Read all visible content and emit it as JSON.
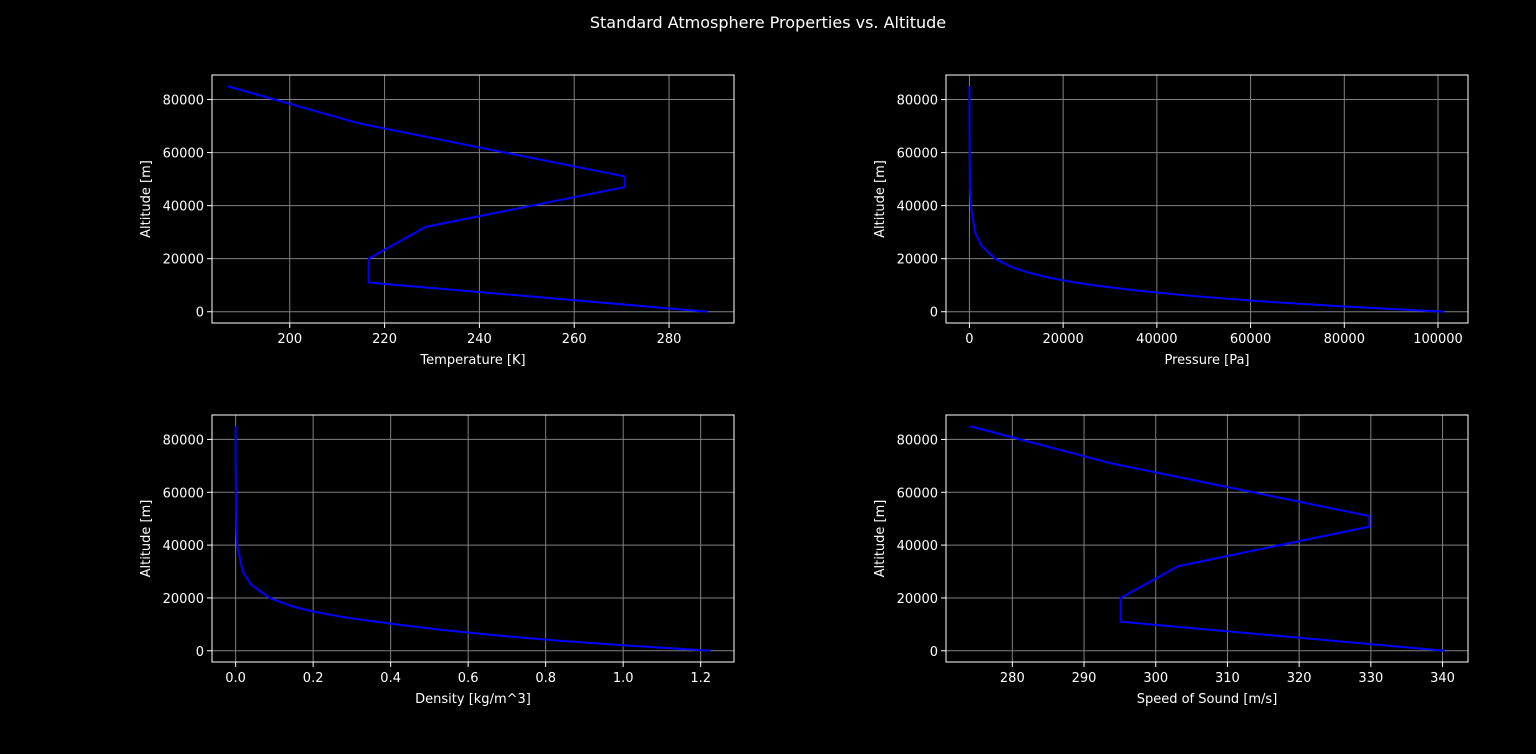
{
  "figure": {
    "title": "Standard Atmosphere Properties vs. Altitude",
    "background": "#000000",
    "foreground": "#ffffff",
    "grid_color": "#808080",
    "line_color": "#0000ff"
  },
  "chart_data": [
    {
      "type": "line",
      "xlabel": "Temperature [K]",
      "ylabel": "Altitude [m]",
      "xlim": [
        183.6,
        293.7
      ],
      "ylim": [
        -4250,
        89250
      ],
      "xticks": [
        200,
        220,
        240,
        260,
        280
      ],
      "xtick_labels": [
        "200",
        "220",
        "240",
        "260",
        "280"
      ],
      "yticks": [
        0,
        20000,
        40000,
        60000,
        80000
      ],
      "ytick_labels": [
        "0",
        "20000",
        "40000",
        "60000",
        "80000"
      ],
      "grid": true,
      "series": [
        {
          "x": [
            288.15,
            216.65,
            216.65,
            228.65,
            270.65,
            270.65,
            214.65,
            186.95
          ],
          "y": [
            0,
            11000,
            20000,
            32000,
            47000,
            51000,
            71000,
            85000
          ]
        }
      ]
    },
    {
      "type": "line",
      "xlabel": "Pressure [Pa]",
      "ylabel": "Altitude [m]",
      "xlim": [
        -5000,
        106400
      ],
      "ylim": [
        -4250,
        89250
      ],
      "xticks": [
        0,
        20000,
        40000,
        60000,
        80000,
        100000
      ],
      "xtick_labels": [
        "0",
        "20000",
        "40000",
        "60000",
        "80000",
        "100000"
      ],
      "yticks": [
        0,
        20000,
        40000,
        60000,
        80000
      ],
      "ytick_labels": [
        "0",
        "20000",
        "40000",
        "60000",
        "80000"
      ],
      "grid": true,
      "series": [
        {
          "x": [
            101325,
            79501,
            61640,
            47181,
            35600,
            26500,
            22632,
            19400,
            16580,
            12111,
            8850,
            5475,
            2511,
            1200,
            287,
            110,
            4,
            0.4
          ],
          "y": [
            0,
            2000,
            4000,
            6000,
            8000,
            10000,
            11000,
            12000,
            13000,
            15000,
            17000,
            20000,
            25000,
            30000,
            40000,
            47000,
            71000,
            85000
          ]
        }
      ]
    },
    {
      "type": "line",
      "xlabel": "Density [kg/m^3]",
      "ylabel": "Altitude [m]",
      "xlim": [
        -0.061,
        1.286
      ],
      "ylim": [
        -4250,
        89250
      ],
      "xticks": [
        0.0,
        0.2,
        0.4,
        0.6,
        0.8,
        1.0,
        1.2
      ],
      "xtick_labels": [
        "0.0",
        "0.2",
        "0.4",
        "0.6",
        "0.8",
        "1.0",
        "1.2"
      ],
      "yticks": [
        0,
        20000,
        40000,
        60000,
        80000
      ],
      "ytick_labels": [
        "0",
        "20000",
        "40000",
        "60000",
        "80000"
      ],
      "grid": true,
      "series": [
        {
          "x": [
            1.225,
            1.007,
            0.819,
            0.66,
            0.526,
            0.414,
            0.364,
            0.312,
            0.267,
            0.195,
            0.142,
            0.088,
            0.04,
            0.018,
            0.004,
            0.0014,
            6e-05,
            7e-06
          ],
          "y": [
            0,
            2000,
            4000,
            6000,
            8000,
            10000,
            11000,
            12000,
            13000,
            15000,
            17000,
            20000,
            25000,
            30000,
            40000,
            47000,
            71000,
            85000
          ]
        }
      ]
    },
    {
      "type": "line",
      "xlabel": "Speed of Sound [m/s]",
      "ylabel": "Altitude [m]",
      "xlim": [
        270.75,
        343.55
      ],
      "ylim": [
        -4250,
        89250
      ],
      "xticks": [
        280,
        290,
        300,
        310,
        320,
        330,
        340
      ],
      "xtick_labels": [
        "280",
        "290",
        "300",
        "310",
        "320",
        "330",
        "340"
      ],
      "yticks": [
        0,
        20000,
        40000,
        60000,
        80000
      ],
      "ytick_labels": [
        "0",
        "20000",
        "40000",
        "60000",
        "80000"
      ],
      "grid": true,
      "series": [
        {
          "x": [
            340.3,
            295.1,
            295.1,
            303.1,
            329.8,
            329.8,
            293.7,
            274.1
          ],
          "y": [
            0,
            11000,
            20000,
            32000,
            47000,
            51000,
            71000,
            85000
          ]
        }
      ]
    }
  ]
}
